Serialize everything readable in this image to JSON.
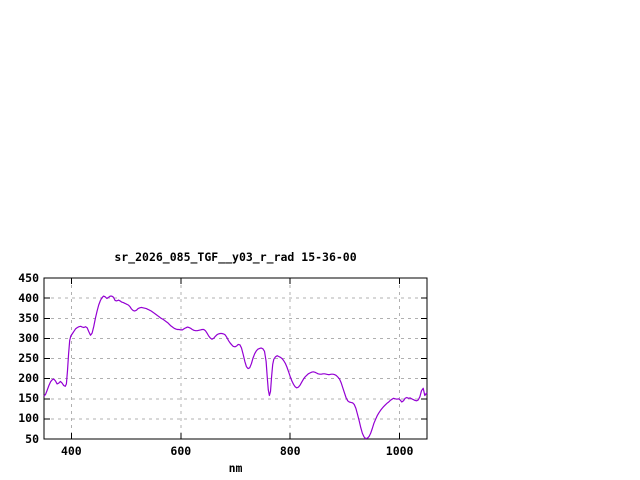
{
  "page": {
    "background": "#ffffff"
  },
  "chart_data": {
    "type": "line",
    "title": "sr_2026_085_TGF__y03_r_rad 15-36-00",
    "xlabel": "nm",
    "ylabel": "",
    "xlim": [
      350,
      1050
    ],
    "ylim": [
      50,
      450
    ],
    "xticks": [
      400,
      600,
      800,
      1000
    ],
    "yticks": [
      50,
      100,
      150,
      200,
      250,
      300,
      350,
      400,
      450
    ],
    "grid": true,
    "legend": "none",
    "line_color": "#9400d3",
    "grid_color": "#b0b0b0",
    "axis_color": "#000000",
    "series": [
      {
        "points": [
          [
            350,
            156
          ],
          [
            353,
            161
          ],
          [
            356,
            172
          ],
          [
            359,
            183
          ],
          [
            362,
            192
          ],
          [
            365,
            197
          ],
          [
            368,
            199
          ],
          [
            371,
            194
          ],
          [
            374,
            187
          ],
          [
            377,
            189
          ],
          [
            380,
            193
          ],
          [
            383,
            189
          ],
          [
            386,
            183
          ],
          [
            389,
            181
          ],
          [
            391,
            187
          ],
          [
            393,
            220
          ],
          [
            395,
            262
          ],
          [
            397,
            295
          ],
          [
            399,
            306
          ],
          [
            402,
            312
          ],
          [
            405,
            318
          ],
          [
            408,
            324
          ],
          [
            411,
            327
          ],
          [
            414,
            329
          ],
          [
            417,
            330
          ],
          [
            420,
            328
          ],
          [
            423,
            327
          ],
          [
            426,
            329
          ],
          [
            429,
            326
          ],
          [
            432,
            316
          ],
          [
            435,
            308
          ],
          [
            438,
            313
          ],
          [
            441,
            330
          ],
          [
            444,
            350
          ],
          [
            447,
            368
          ],
          [
            450,
            383
          ],
          [
            453,
            394
          ],
          [
            456,
            401
          ],
          [
            459,
            405
          ],
          [
            462,
            403
          ],
          [
            465,
            399
          ],
          [
            468,
            402
          ],
          [
            471,
            405
          ],
          [
            474,
            405
          ],
          [
            477,
            402
          ],
          [
            480,
            394
          ],
          [
            483,
            393
          ],
          [
            486,
            395
          ],
          [
            489,
            393
          ],
          [
            492,
            390
          ],
          [
            495,
            389
          ],
          [
            498,
            387
          ],
          [
            501,
            385
          ],
          [
            504,
            383
          ],
          [
            507,
            379
          ],
          [
            510,
            373
          ],
          [
            513,
            369
          ],
          [
            516,
            368
          ],
          [
            519,
            370
          ],
          [
            522,
            374
          ],
          [
            525,
            376
          ],
          [
            528,
            377
          ],
          [
            531,
            376
          ],
          [
            534,
            375
          ],
          [
            537,
            374
          ],
          [
            540,
            372
          ],
          [
            543,
            370
          ],
          [
            546,
            368
          ],
          [
            549,
            365
          ],
          [
            552,
            362
          ],
          [
            555,
            359
          ],
          [
            558,
            356
          ],
          [
            561,
            353
          ],
          [
            564,
            350
          ],
          [
            567,
            348
          ],
          [
            570,
            345
          ],
          [
            573,
            342
          ],
          [
            576,
            339
          ],
          [
            579,
            335
          ],
          [
            582,
            331
          ],
          [
            585,
            328
          ],
          [
            588,
            325
          ],
          [
            591,
            323
          ],
          [
            594,
            322
          ],
          [
            597,
            322
          ],
          [
            600,
            321
          ],
          [
            603,
            321
          ],
          [
            606,
            324
          ],
          [
            609,
            326
          ],
          [
            612,
            328
          ],
          [
            615,
            327
          ],
          [
            618,
            325
          ],
          [
            621,
            322
          ],
          [
            624,
            320
          ],
          [
            627,
            319
          ],
          [
            630,
            319
          ],
          [
            633,
            320
          ],
          [
            636,
            321
          ],
          [
            639,
            322
          ],
          [
            642,
            322
          ],
          [
            645,
            319
          ],
          [
            648,
            313
          ],
          [
            651,
            306
          ],
          [
            654,
            301
          ],
          [
            657,
            298
          ],
          [
            660,
            300
          ],
          [
            663,
            305
          ],
          [
            666,
            309
          ],
          [
            669,
            311
          ],
          [
            672,
            312
          ],
          [
            675,
            312
          ],
          [
            678,
            311
          ],
          [
            681,
            309
          ],
          [
            684,
            303
          ],
          [
            687,
            295
          ],
          [
            690,
            289
          ],
          [
            693,
            284
          ],
          [
            696,
            280
          ],
          [
            699,
            279
          ],
          [
            702,
            281
          ],
          [
            705,
            285
          ],
          [
            708,
            284
          ],
          [
            711,
            276
          ],
          [
            714,
            260
          ],
          [
            717,
            243
          ],
          [
            720,
            230
          ],
          [
            723,
            225
          ],
          [
            726,
            227
          ],
          [
            729,
            237
          ],
          [
            732,
            251
          ],
          [
            735,
            262
          ],
          [
            738,
            269
          ],
          [
            741,
            273
          ],
          [
            744,
            275
          ],
          [
            747,
            276
          ],
          [
            750,
            274
          ],
          [
            753,
            268
          ],
          [
            756,
            243
          ],
          [
            758,
            205
          ],
          [
            760,
            172
          ],
          [
            762,
            158
          ],
          [
            764,
            168
          ],
          [
            766,
            205
          ],
          [
            768,
            235
          ],
          [
            770,
            248
          ],
          [
            773,
            254
          ],
          [
            776,
            257
          ],
          [
            779,
            255
          ],
          [
            782,
            253
          ],
          [
            785,
            250
          ],
          [
            788,
            245
          ],
          [
            791,
            238
          ],
          [
            794,
            229
          ],
          [
            797,
            217
          ],
          [
            800,
            205
          ],
          [
            803,
            194
          ],
          [
            806,
            186
          ],
          [
            809,
            180
          ],
          [
            812,
            177
          ],
          [
            815,
            179
          ],
          [
            818,
            184
          ],
          [
            821,
            191
          ],
          [
            824,
            198
          ],
          [
            827,
            204
          ],
          [
            830,
            208
          ],
          [
            833,
            212
          ],
          [
            836,
            214
          ],
          [
            839,
            216
          ],
          [
            842,
            217
          ],
          [
            845,
            216
          ],
          [
            848,
            214
          ],
          [
            851,
            212
          ],
          [
            854,
            211
          ],
          [
            857,
            211
          ],
          [
            860,
            212
          ],
          [
            863,
            212
          ],
          [
            866,
            211
          ],
          [
            869,
            210
          ],
          [
            872,
            210
          ],
          [
            875,
            211
          ],
          [
            878,
            211
          ],
          [
            881,
            210
          ],
          [
            884,
            208
          ],
          [
            887,
            204
          ],
          [
            890,
            199
          ],
          [
            893,
            190
          ],
          [
            896,
            178
          ],
          [
            899,
            165
          ],
          [
            902,
            153
          ],
          [
            905,
            145
          ],
          [
            908,
            142
          ],
          [
            911,
            141
          ],
          [
            914,
            140
          ],
          [
            917,
            136
          ],
          [
            920,
            126
          ],
          [
            923,
            111
          ],
          [
            926,
            95
          ],
          [
            929,
            78
          ],
          [
            932,
            64
          ],
          [
            935,
            55
          ],
          [
            938,
            51
          ],
          [
            941,
            52
          ],
          [
            944,
            56
          ],
          [
            947,
            64
          ],
          [
            950,
            76
          ],
          [
            953,
            89
          ],
          [
            956,
            99
          ],
          [
            959,
            108
          ],
          [
            962,
            115
          ],
          [
            965,
            121
          ],
          [
            968,
            126
          ],
          [
            971,
            131
          ],
          [
            974,
            135
          ],
          [
            977,
            139
          ],
          [
            980,
            142
          ],
          [
            983,
            146
          ],
          [
            986,
            149
          ],
          [
            989,
            151
          ],
          [
            992,
            150
          ],
          [
            995,
            149
          ],
          [
            998,
            150
          ],
          [
            1001,
            147
          ],
          [
            1004,
            142
          ],
          [
            1007,
            145
          ],
          [
            1010,
            151
          ],
          [
            1013,
            153
          ],
          [
            1016,
            151
          ],
          [
            1019,
            152
          ],
          [
            1022,
            150
          ],
          [
            1025,
            148
          ],
          [
            1028,
            146
          ],
          [
            1031,
            145
          ],
          [
            1034,
            147
          ],
          [
            1037,
            155
          ],
          [
            1040,
            170
          ],
          [
            1043,
            176
          ],
          [
            1046,
            158
          ],
          [
            1048,
            162
          ],
          [
            1050,
            165
          ]
        ]
      }
    ]
  }
}
